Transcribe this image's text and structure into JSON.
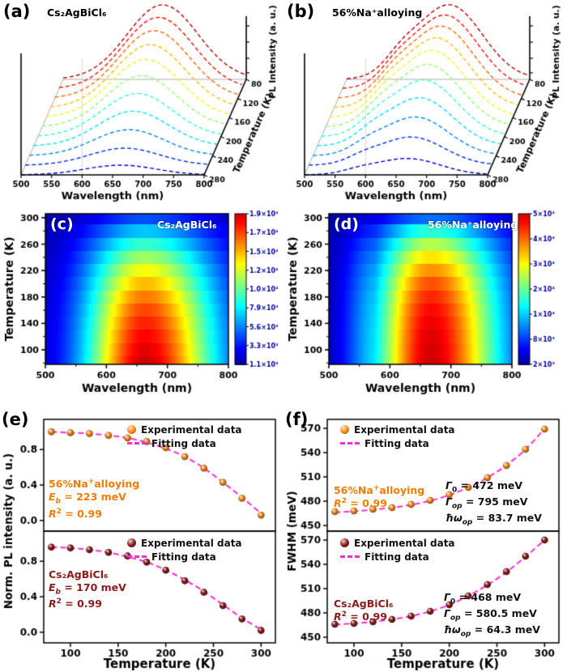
{
  "panels": {
    "a": {
      "label": "(a)",
      "title": "Cs₂AgBiCl₆"
    },
    "b": {
      "label": "(b)",
      "title": "56%Na⁺alloying"
    },
    "c": {
      "label": "(c)",
      "title": "Cs₂AgBiCl₆"
    },
    "d": {
      "label": "(d)",
      "title": "56%Na⁺alloying"
    },
    "e": {
      "label": "(e)"
    },
    "f": {
      "label": "(f)"
    }
  },
  "legend": {
    "experimental": "Experimental data",
    "fitting": "Fitting data"
  },
  "colors": {
    "fit_line": "#ff2ad4",
    "na_series": "#ff8c1a",
    "cs_series": "#8b1a1a"
  },
  "annotations": {
    "e_top": {
      "color": "#f07d00",
      "lines": [
        [
          {
            "t": "56%Na"
          },
          {
            "t": "+",
            "sup": true
          },
          {
            "t": "alloying"
          }
        ],
        [
          {
            "t": "E",
            "i": true
          },
          {
            "t": "b",
            "sub": true,
            "i": true
          },
          {
            "t": " = 223 meV"
          }
        ],
        [
          {
            "t": "R",
            "i": true
          },
          {
            "t": "2",
            "sup": true
          },
          {
            "t": " = 0.99"
          }
        ]
      ]
    },
    "e_bottom": {
      "color": "#8b1a1a",
      "lines": [
        [
          {
            "t": "Cs₂AgBiCl₆"
          }
        ],
        [
          {
            "t": "E",
            "i": true
          },
          {
            "t": "b",
            "sub": true,
            "i": true
          },
          {
            "t": " = 170 meV"
          }
        ],
        [
          {
            "t": "R",
            "i": true
          },
          {
            "t": "2",
            "sup": true
          },
          {
            "t": " = 0.99"
          }
        ]
      ]
    },
    "f_top_left": {
      "color": "#f07d00",
      "lines": [
        [
          {
            "t": "56%Na"
          },
          {
            "t": "+",
            "sup": true
          },
          {
            "t": "alloying"
          }
        ],
        [
          {
            "t": "R",
            "i": true
          },
          {
            "t": "2",
            "sup": true
          },
          {
            "t": " = 0.99"
          }
        ]
      ]
    },
    "f_top_right": {
      "color": "#111111",
      "lines": [
        [
          {
            "t": "Γ",
            "i": true
          },
          {
            "t": "0",
            "sub": true
          },
          {
            "t": " = 472 meV"
          }
        ],
        [
          {
            "t": "Γ",
            "i": true
          },
          {
            "t": "op",
            "sub": true,
            "i": true
          },
          {
            "t": " = 795 meV"
          }
        ],
        [
          {
            "t": "ħω",
            "i": true
          },
          {
            "t": "op",
            "sub": true,
            "i": true
          },
          {
            "t": " = 83.7 meV"
          }
        ]
      ]
    },
    "f_bottom_left": {
      "color": "#8b1a1a",
      "lines": [
        [
          {
            "t": "Cs₂AgBiCl₆"
          }
        ],
        [
          {
            "t": "R",
            "i": true
          },
          {
            "t": "2",
            "sup": true
          },
          {
            "t": " = 0.99"
          }
        ]
      ]
    },
    "f_bottom_right": {
      "color": "#111111",
      "lines": [
        [
          {
            "t": "Γ",
            "i": true
          },
          {
            "t": "0",
            "sub": true
          },
          {
            "t": " = 468 meV"
          }
        ],
        [
          {
            "t": "Γ",
            "i": true
          },
          {
            "t": "op",
            "sub": true,
            "i": true
          },
          {
            "t": " = 580.5 meV"
          }
        ],
        [
          {
            "t": "ħω",
            "i": true
          },
          {
            "t": "op",
            "sub": true,
            "i": true
          },
          {
            "t": " = 64.3 meV"
          }
        ]
      ]
    }
  },
  "chart_data": [
    {
      "panel": "a",
      "type": "line",
      "variant": "waterfall3d",
      "title": "Cs₂AgBiCl₆",
      "xlabel": "Wavelength (nm)",
      "xlim": [
        500,
        800
      ],
      "x_ticks": [
        500,
        550,
        600,
        650,
        700,
        750,
        800
      ],
      "depth_label": "Temperature (K)",
      "depth_ticks": [
        280,
        240,
        200,
        160,
        120,
        80
      ],
      "zlabel": "PL Intensity (a. u.)",
      "temperatures_K": [
        80,
        100,
        120,
        140,
        160,
        180,
        200,
        220,
        240,
        260,
        280
      ],
      "rel_intensity": [
        1.0,
        0.96,
        0.91,
        0.85,
        0.78,
        0.69,
        0.58,
        0.47,
        0.35,
        0.23,
        0.13
      ],
      "peak_nm": 663,
      "width_nm": 58,
      "shoulder_nm": null,
      "shoulder_rel": 0
    },
    {
      "panel": "b",
      "type": "line",
      "variant": "waterfall3d",
      "title": "56%Na⁺alloying",
      "xlabel": "Wavelength (nm)",
      "xlim": [
        500,
        800
      ],
      "x_ticks": [
        500,
        550,
        600,
        650,
        700,
        750,
        800
      ],
      "depth_label": "Temperature (K)",
      "depth_ticks": [
        280,
        240,
        200,
        160,
        120,
        80
      ],
      "zlabel": "PL Intensity (a. u.)",
      "temperatures_K": [
        80,
        100,
        120,
        140,
        160,
        180,
        200,
        220,
        240,
        260,
        280
      ],
      "rel_intensity": [
        1.0,
        0.99,
        0.97,
        0.94,
        0.9,
        0.84,
        0.76,
        0.65,
        0.52,
        0.38,
        0.22
      ],
      "peak_nm": 668,
      "width_nm": 54,
      "shoulder_nm": 588,
      "shoulder_rel": 0.18
    },
    {
      "panel": "c",
      "type": "heatmap",
      "title": "Cs₂AgBiCl₆",
      "xlabel": "Wavelength (nm)",
      "xlim": [
        500,
        800
      ],
      "x_ticks": [
        500,
        600,
        700,
        800
      ],
      "ylabel": "Temperature (K)",
      "ylim": [
        78,
        306
      ],
      "y_ticks": [
        100,
        140,
        180,
        220,
        260,
        300
      ],
      "colorbar_ticks": [
        "1.9×10⁴",
        "1.7×10⁴",
        "1.5×10⁴",
        "1.2×10⁴",
        "1.0×10⁴",
        "7.9×10³",
        "5.6×10³",
        "3.3×10³",
        "1.1×10³"
      ],
      "temperatures_K": [
        80,
        100,
        120,
        140,
        160,
        180,
        200,
        220,
        240,
        260,
        280,
        300
      ],
      "rel_intensity": [
        1.0,
        0.96,
        0.91,
        0.85,
        0.78,
        0.69,
        0.58,
        0.47,
        0.35,
        0.23,
        0.13,
        0.05
      ],
      "peak_nm": 662,
      "width_left_nm": 52,
      "width_right_nm": 62,
      "shoulder_nm": null,
      "shoulder_rel": 0
    },
    {
      "panel": "d",
      "type": "heatmap",
      "title": "56%Na⁺alloying",
      "xlabel": "Wavelength (nm)",
      "xlim": [
        500,
        800
      ],
      "x_ticks": [
        500,
        600,
        700,
        800
      ],
      "ylabel": "Temperature (K)",
      "ylim": [
        78,
        306
      ],
      "y_ticks": [
        100,
        140,
        180,
        220,
        260,
        300
      ],
      "colorbar_ticks": [
        "5×10⁴",
        "4×10⁴",
        "3×10⁴",
        "2×10⁴",
        "1×10⁴",
        "8×10³",
        "2×10³"
      ],
      "temperatures_K": [
        80,
        100,
        120,
        140,
        160,
        180,
        200,
        220,
        240,
        260,
        280,
        300
      ],
      "rel_intensity": [
        1.0,
        0.99,
        0.97,
        0.94,
        0.9,
        0.84,
        0.76,
        0.65,
        0.52,
        0.38,
        0.22,
        0.07
      ],
      "peak_nm": 666,
      "width_left_nm": 48,
      "width_right_nm": 60,
      "shoulder_nm": 582,
      "shoulder_rel": 0.16
    },
    {
      "panel": "e",
      "type": "scatter",
      "xlabel": "Temperature (K)",
      "xlim": [
        72,
        315
      ],
      "x_ticks": [
        100,
        150,
        200,
        250,
        300
      ],
      "ylabel": "Norm. PL intensity (a. u.)",
      "ylim": [
        -0.12,
        1.14
      ],
      "y_ticks": [
        "0.0",
        "0.4",
        "0.8"
      ],
      "y_tick_vals": [
        0.0,
        0.4,
        0.8
      ],
      "fit_color": "#ff2ad4",
      "subplots": [
        {
          "name": "56%Na⁺alloying",
          "color": "#ff8c1a",
          "x": [
            80,
            100,
            120,
            140,
            160,
            180,
            200,
            220,
            240,
            260,
            280,
            300
          ],
          "experimental": [
            1.0,
            0.99,
            0.98,
            0.96,
            0.93,
            0.89,
            0.82,
            0.72,
            0.59,
            0.43,
            0.25,
            0.06
          ],
          "fit": [
            1.0,
            0.99,
            0.98,
            0.96,
            0.93,
            0.88,
            0.81,
            0.72,
            0.59,
            0.43,
            0.26,
            0.08
          ],
          "E_b_meV": 223,
          "R2": 0.99
        },
        {
          "name": "Cs₂AgBiCl₆",
          "color": "#8b1a1a",
          "x": [
            80,
            100,
            120,
            140,
            160,
            180,
            200,
            220,
            240,
            260,
            280,
            300
          ],
          "experimental": [
            0.96,
            0.95,
            0.93,
            0.9,
            0.86,
            0.79,
            0.7,
            0.58,
            0.45,
            0.3,
            0.15,
            0.02
          ],
          "fit": [
            0.96,
            0.95,
            0.93,
            0.9,
            0.85,
            0.79,
            0.7,
            0.59,
            0.46,
            0.31,
            0.16,
            0.03
          ],
          "E_b_meV": 170,
          "R2": 0.99
        }
      ]
    },
    {
      "panel": "f",
      "type": "scatter",
      "xlabel": "Temperature (K)",
      "xlim": [
        72,
        315
      ],
      "x_ticks": [
        100,
        150,
        200,
        250,
        300
      ],
      "ylabel": "FWHM (meV)",
      "ylim": [
        443,
        581
      ],
      "y_ticks": [
        "450",
        "480",
        "510",
        "540",
        "570"
      ],
      "y_tick_vals": [
        450,
        480,
        510,
        540,
        570
      ],
      "fit_color": "#ff2ad4",
      "subplots": [
        {
          "name": "56%Na⁺alloying",
          "color": "#ff8c1a",
          "x": [
            80,
            100,
            120,
            140,
            160,
            180,
            200,
            220,
            240,
            260,
            280,
            300
          ],
          "experimental": [
            467,
            468,
            470,
            472,
            476,
            481,
            488,
            497,
            509,
            524,
            544,
            569
          ],
          "fit": [
            466,
            467.5,
            469.5,
            472,
            475.5,
            480.5,
            487.5,
            497,
            509,
            524.5,
            544,
            569.5
          ],
          "Gamma0_meV": 472,
          "Gamma_op_meV": 795,
          "hw_op_meV": 83.7,
          "R2": 0.99
        },
        {
          "name": "Cs₂AgBiCl₆",
          "color": "#8b1a1a",
          "x": [
            80,
            100,
            120,
            140,
            160,
            180,
            200,
            220,
            240,
            260,
            280,
            300
          ],
          "experimental": [
            466,
            467,
            469,
            472,
            476,
            482,
            490,
            501,
            515,
            531,
            550,
            570
          ],
          "fit": [
            465.5,
            467,
            469,
            472,
            476,
            482,
            490,
            501,
            514.5,
            530.5,
            549.5,
            570
          ],
          "Gamma0_meV": 468,
          "Gamma_op_meV": 580.5,
          "hw_op_meV": 64.3,
          "R2": 0.99
        }
      ]
    }
  ]
}
